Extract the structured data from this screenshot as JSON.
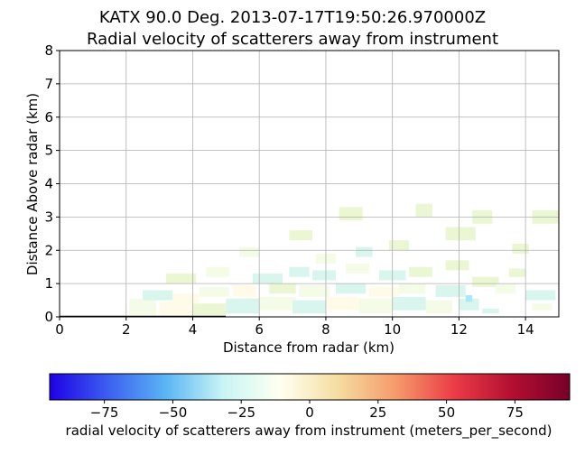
{
  "chart_data": {
    "type": "heatmap",
    "title": "KATX 90.0 Deg. 2013-07-17T19:50:26.970000Z",
    "subtitle": "Radial velocity of scatterers away from instrument",
    "xlabel": "Distance from radar (km)",
    "ylabel": "Distance Above radar  (km)",
    "xlim": [
      0,
      15
    ],
    "ylim": [
      0,
      8
    ],
    "xticks": [
      "0",
      "2",
      "4",
      "6",
      "8",
      "10",
      "12",
      "14"
    ],
    "yticks": [
      "0",
      "1",
      "2",
      "3",
      "4",
      "5",
      "6",
      "7",
      "8"
    ],
    "grid": true,
    "colorbar": {
      "label": "radial velocity of scatterers away from instrument (meters_per_second)",
      "range": [
        -95,
        95
      ],
      "ticks": [
        "−75",
        "−50",
        "−25",
        "0",
        "25",
        "50",
        "75"
      ],
      "tick_values": [
        -75,
        -50,
        -25,
        0,
        25,
        50,
        75
      ],
      "colormap": [
        "#1e00e6",
        "#3c5ef0",
        "#5ab4f5",
        "#c8f5f5",
        "#fffff0",
        "#f5dca0",
        "#f59a6a",
        "#eb3c46",
        "#b40f32",
        "#780028"
      ]
    },
    "cells": [
      [
        2.1,
        0.05,
        0.8,
        0.5,
        4
      ],
      [
        3.0,
        0.05,
        1.0,
        0.4,
        6
      ],
      [
        4.0,
        0.05,
        1.0,
        0.35,
        5
      ],
      [
        2.5,
        0.5,
        0.9,
        0.3,
        3
      ],
      [
        3.4,
        0.4,
        0.8,
        0.3,
        6
      ],
      [
        4.2,
        0.6,
        0.9,
        0.3,
        4
      ],
      [
        5.0,
        0.1,
        1.0,
        0.45,
        3
      ],
      [
        5.2,
        0.6,
        0.7,
        0.35,
        6
      ],
      [
        5.8,
        1.0,
        0.9,
        0.3,
        3
      ],
      [
        6.0,
        0.2,
        1.1,
        0.4,
        4
      ],
      [
        6.3,
        0.7,
        0.8,
        0.3,
        5
      ],
      [
        6.9,
        1.2,
        0.6,
        0.3,
        3
      ],
      [
        7.0,
        0.1,
        1.0,
        0.4,
        3
      ],
      [
        7.2,
        0.6,
        0.9,
        0.35,
        4
      ],
      [
        7.6,
        1.1,
        0.7,
        0.3,
        3
      ],
      [
        7.7,
        1.6,
        0.6,
        0.3,
        4
      ],
      [
        8.0,
        0.2,
        1.0,
        0.4,
        6
      ],
      [
        8.3,
        0.7,
        0.9,
        0.3,
        3
      ],
      [
        8.6,
        1.3,
        0.7,
        0.3,
        4
      ],
      [
        8.9,
        1.8,
        0.5,
        0.3,
        3
      ],
      [
        9.0,
        0.1,
        1.0,
        0.45,
        4
      ],
      [
        9.3,
        0.6,
        0.9,
        0.3,
        6
      ],
      [
        9.6,
        1.1,
        0.8,
        0.3,
        3
      ],
      [
        10.0,
        0.2,
        1.0,
        0.4,
        3
      ],
      [
        10.2,
        0.7,
        0.8,
        0.3,
        4
      ],
      [
        10.5,
        1.2,
        0.7,
        0.3,
        5
      ],
      [
        9.9,
        2.0,
        0.6,
        0.3,
        5
      ],
      [
        11.0,
        0.1,
        0.8,
        0.4,
        4
      ],
      [
        11.3,
        0.6,
        0.9,
        0.35,
        3
      ],
      [
        11.6,
        1.4,
        0.7,
        0.3,
        5
      ],
      [
        12.0,
        0.2,
        0.6,
        0.35,
        3
      ],
      [
        12.4,
        0.9,
        0.8,
        0.3,
        5
      ],
      [
        12.2,
        0.45,
        0.2,
        0.2,
        2
      ],
      [
        12.7,
        0.1,
        0.5,
        0.15,
        3
      ],
      [
        13.1,
        0.7,
        0.6,
        0.3,
        4
      ],
      [
        13.5,
        1.2,
        0.5,
        0.25,
        5
      ],
      [
        14.0,
        0.5,
        0.9,
        0.3,
        3
      ],
      [
        14.2,
        0.2,
        0.6,
        0.2,
        4
      ],
      [
        13.6,
        1.9,
        0.5,
        0.3,
        5
      ],
      [
        11.6,
        2.3,
        0.9,
        0.4,
        5
      ],
      [
        12.4,
        2.8,
        0.6,
        0.4,
        5
      ],
      [
        10.7,
        3.0,
        0.5,
        0.4,
        5
      ],
      [
        8.4,
        2.9,
        0.7,
        0.4,
        5
      ],
      [
        6.9,
        2.3,
        0.7,
        0.3,
        5
      ],
      [
        14.2,
        2.8,
        0.8,
        0.4,
        5
      ],
      [
        3.2,
        1.0,
        0.9,
        0.3,
        5
      ],
      [
        4.4,
        1.2,
        0.7,
        0.3,
        4
      ],
      [
        5.4,
        1.8,
        0.6,
        0.3,
        4
      ]
    ]
  }
}
